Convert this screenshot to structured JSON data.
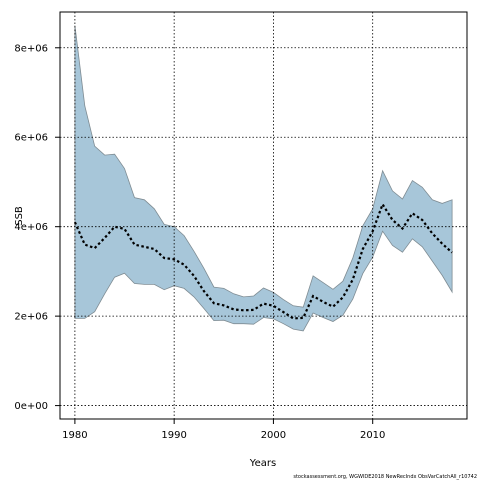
{
  "chart_data": {
    "type": "area",
    "xlabel": "Years",
    "ylabel": "SSB",
    "xlim": [
      1978.5,
      2019.5
    ],
    "ylim": [
      -300000,
      8800000
    ],
    "x_ticks": [
      1980,
      1990,
      2000,
      2010
    ],
    "y_ticks": [
      {
        "value": 0,
        "label": "0e+00"
      },
      {
        "value": 2000000,
        "label": "2e+06"
      },
      {
        "value": 4000000,
        "label": "4e+06"
      },
      {
        "value": 6000000,
        "label": "6e+06"
      },
      {
        "value": 8000000,
        "label": "8e+06"
      }
    ],
    "grid": true,
    "band_color": "#a7c6d9",
    "band_edge_color": "#7f8c93",
    "line_color": "#000000",
    "x": [
      1980,
      1981,
      1982,
      1983,
      1984,
      1985,
      1986,
      1987,
      1988,
      1989,
      1990,
      1991,
      1992,
      1993,
      1994,
      1995,
      1996,
      1997,
      1998,
      1999,
      2000,
      2001,
      2002,
      2003,
      2004,
      2005,
      2006,
      2007,
      2008,
      2009,
      2010,
      2011,
      2012,
      2013,
      2014,
      2015,
      2016,
      2017,
      2018
    ],
    "series": [
      {
        "role": "estimate",
        "values": [
          4100000,
          3600000,
          3520000,
          3750000,
          4000000,
          3950000,
          3600000,
          3550000,
          3500000,
          3300000,
          3270000,
          3150000,
          2900000,
          2560000,
          2290000,
          2240000,
          2150000,
          2130000,
          2140000,
          2280000,
          2230000,
          2090000,
          1950000,
          1960000,
          2450000,
          2320000,
          2210000,
          2420000,
          2820000,
          3500000,
          3900000,
          4500000,
          4150000,
          3960000,
          4300000,
          4150000,
          3850000,
          3620000,
          3420000
        ]
      },
      {
        "role": "upper",
        "values": [
          8500000,
          6700000,
          5800000,
          5600000,
          5620000,
          5300000,
          4650000,
          4600000,
          4400000,
          4050000,
          4000000,
          3800000,
          3450000,
          3070000,
          2650000,
          2620000,
          2500000,
          2430000,
          2450000,
          2630000,
          2530000,
          2370000,
          2230000,
          2200000,
          2900000,
          2750000,
          2600000,
          2780000,
          3300000,
          4020000,
          4400000,
          5250000,
          4800000,
          4620000,
          5030000,
          4880000,
          4600000,
          4520000,
          4600000
        ]
      },
      {
        "role": "lower",
        "values": [
          1950000,
          1950000,
          2100000,
          2500000,
          2870000,
          2960000,
          2730000,
          2710000,
          2710000,
          2590000,
          2680000,
          2620000,
          2430000,
          2170000,
          1900000,
          1910000,
          1830000,
          1830000,
          1820000,
          1970000,
          1940000,
          1830000,
          1710000,
          1670000,
          2070000,
          1970000,
          1880000,
          2020000,
          2380000,
          2950000,
          3320000,
          3900000,
          3580000,
          3430000,
          3730000,
          3550000,
          3230000,
          2910000,
          2540000
        ]
      }
    ]
  },
  "footer_text": "stockassessment.org,  WGWIDE2018  NewRecIndx  ObsVarCatchAll_r10742"
}
